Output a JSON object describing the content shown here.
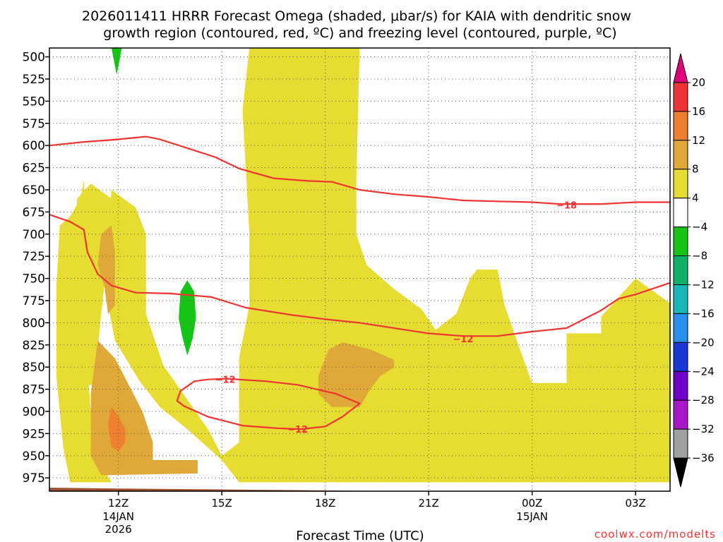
{
  "chart_data": {
    "type": "heatmap",
    "title_line1": "2026011411 HRRR Forecast Omega (shaded, μbar/s) for KAIA with dendritic snow",
    "title_line2": "growth region (contoured, red, ºC) and freezing level (contoured, purple, ºC)",
    "xlabel": "Forecast Time (UTC)",
    "credit": "coolwx.com/modelts",
    "x_range_hours": [
      10,
      28
    ],
    "y_range_hpa": [
      490,
      990
    ],
    "y_ticks": [
      500,
      525,
      550,
      575,
      600,
      625,
      650,
      675,
      700,
      725,
      750,
      775,
      800,
      825,
      850,
      875,
      900,
      925,
      950,
      975
    ],
    "x_ticks": [
      {
        "hour": 12,
        "label": "12Z",
        "sub1": "14JAN",
        "sub2": "2026"
      },
      {
        "hour": 15,
        "label": "15Z",
        "sub1": "",
        "sub2": ""
      },
      {
        "hour": 18,
        "label": "18Z",
        "sub1": "",
        "sub2": ""
      },
      {
        "hour": 21,
        "label": "21Z",
        "sub1": "",
        "sub2": ""
      },
      {
        "hour": 24,
        "label": "00Z",
        "sub1": "15JAN",
        "sub2": ""
      },
      {
        "hour": 27,
        "label": "03Z",
        "sub1": "",
        "sub2": ""
      }
    ],
    "colorbar": {
      "labels": [
        "20",
        "16",
        "12",
        "8",
        "4",
        "-4",
        "-8",
        "-12",
        "-16",
        "-20",
        "-24",
        "-28",
        "-32",
        "-36"
      ],
      "colors": [
        "#e0007a",
        "#ee3333",
        "#ee8030",
        "#e0a838",
        "#e6dc32",
        "#ffffff",
        "#16c416",
        "#10b068",
        "#18b8b8",
        "#2890ee",
        "#1838d8",
        "#7000c8",
        "#a818c8",
        "#a0a0a0",
        "#000000"
      ]
    },
    "shading_levels": {
      "omega_4_8": "#e6dc32",
      "omega_8_12": "#e0a838",
      "omega_12_16": "#ee8030",
      "omega_neg4_neg8": "#16c416"
    },
    "contour_color": "#ee3333",
    "terrain_color": "#a0522d",
    "contours": [
      {
        "level": "-18",
        "points": [
          [
            10,
            600
          ],
          [
            11,
            596
          ],
          [
            11.7,
            594
          ],
          [
            12,
            593
          ],
          [
            12.8,
            590
          ],
          [
            13.2,
            593
          ],
          [
            14,
            603
          ],
          [
            14.8,
            613
          ],
          [
            15.5,
            626
          ],
          [
            16.5,
            637
          ],
          [
            17.5,
            640
          ],
          [
            18.2,
            641
          ],
          [
            19,
            650
          ],
          [
            20,
            655
          ],
          [
            21,
            658
          ],
          [
            22,
            662
          ],
          [
            23,
            663
          ],
          [
            24,
            664
          ],
          [
            24.8,
            666
          ],
          [
            26,
            666
          ],
          [
            27,
            664
          ],
          [
            28,
            664
          ],
          [
            28.8,
            660
          ]
        ],
        "label": {
          "text": "-18",
          "at": [
            25,
            667
          ]
        }
      },
      {
        "level": "-12",
        "points": [
          [
            10,
            678
          ],
          [
            10.6,
            686
          ],
          [
            11,
            695
          ],
          [
            11.1,
            720
          ],
          [
            11.4,
            745
          ],
          [
            11.8,
            758
          ],
          [
            12.5,
            766
          ],
          [
            13.5,
            767
          ],
          [
            14.7,
            771
          ],
          [
            15.7,
            783
          ],
          [
            17,
            791
          ],
          [
            18,
            796
          ],
          [
            19,
            800
          ],
          [
            20,
            806
          ],
          [
            21,
            812
          ],
          [
            22,
            815
          ],
          [
            23,
            815
          ],
          [
            24,
            810
          ],
          [
            25,
            806
          ],
          [
            26,
            786
          ],
          [
            26.5,
            773
          ],
          [
            27,
            768
          ],
          [
            28,
            755
          ],
          [
            28.8,
            750
          ]
        ],
        "label": {
          "text": "-12",
          "at": [
            22,
            818
          ]
        }
      },
      {
        "level": "-12",
        "points": [
          [
            15.1,
            863
          ],
          [
            14.6,
            864
          ],
          [
            14.2,
            866
          ],
          [
            13.8,
            877
          ],
          [
            13.7,
            888
          ],
          [
            13.9,
            894
          ],
          [
            14.6,
            906
          ],
          [
            15.6,
            916
          ],
          [
            16.6,
            919
          ],
          [
            17.3,
            920
          ],
          [
            18,
            917
          ],
          [
            18.5,
            906
          ],
          [
            19,
            891
          ],
          [
            18.3,
            880
          ],
          [
            17.2,
            870
          ],
          [
            16.3,
            866
          ],
          [
            15.1,
            863
          ]
        ],
        "label": {
          "text": "-12",
          "at": [
            15.1,
            864
          ]
        }
      },
      {
        "level": "-12",
        "points": [
          [
            16.9,
            920
          ],
          [
            17.1,
            920
          ],
          [
            17.4,
            920
          ]
        ],
        "label": {
          "text": "-12",
          "at": [
            17.2,
            920
          ]
        }
      }
    ]
  }
}
